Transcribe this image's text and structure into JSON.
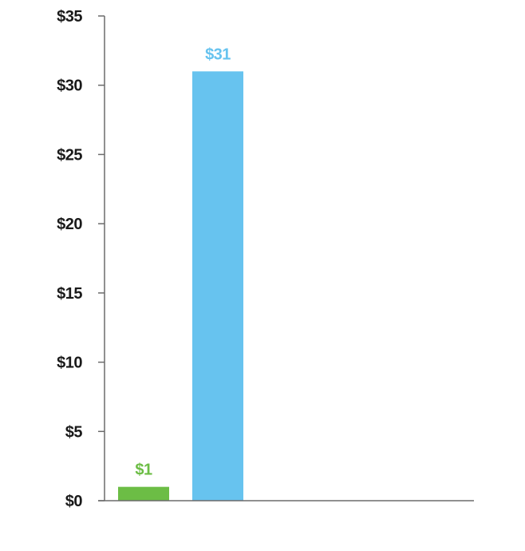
{
  "chart_data": {
    "type": "bar",
    "title": "",
    "xlabel": "",
    "ylabel": "",
    "ylim": [
      0,
      35
    ],
    "y_ticks": [
      0,
      5,
      10,
      15,
      20,
      25,
      30,
      35
    ],
    "y_tick_labels": [
      "$0",
      "$5",
      "$10",
      "$15",
      "$20",
      "$25",
      "$30",
      "$35"
    ],
    "grid": false,
    "legend": "none",
    "bars": [
      {
        "value": 1,
        "label": "$1",
        "color": "#6cbd45"
      },
      {
        "value": 31,
        "label": "$31",
        "color": "#67c3ef"
      }
    ],
    "axis_color": "#6b6b6b",
    "tick_label_color": "#1a1a1a"
  }
}
